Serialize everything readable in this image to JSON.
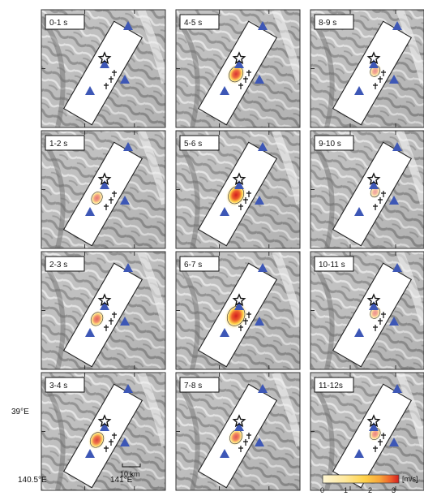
{
  "panels": [
    {
      "label": "0-1 s"
    },
    {
      "label": "4-5 s"
    },
    {
      "label": "8-9  s"
    },
    {
      "label": "1-2 s"
    },
    {
      "label": "5-6 s"
    },
    {
      "label": "9-10 s"
    },
    {
      "label": "2-3  s"
    },
    {
      "label": "6-7 s"
    },
    {
      "label": "10-11 s"
    },
    {
      "label": "3-4 s"
    },
    {
      "label": "7-8 s"
    },
    {
      "label": "11-12s"
    }
  ],
  "slip_intensity": [
    [
      0.0,
      0.55,
      0.15
    ],
    [
      0.25,
      0.7,
      0.08
    ],
    [
      0.35,
      0.9,
      0.15
    ],
    [
      0.5,
      0.4,
      0.2
    ]
  ],
  "axes": {
    "y_tick_label": "39°E",
    "x_tick_labels": [
      "140.5°E",
      "141°E"
    ]
  },
  "scale_bar": {
    "label": "10 km"
  },
  "colorbar": {
    "unit": "[m/s]",
    "ticks": [
      "0",
      "1",
      "2",
      "3"
    ],
    "colors": [
      "#fff7d4",
      "#ffe89a",
      "#ffd24a",
      "#f7a53a",
      "#ec5c2a",
      "#d31d1f"
    ]
  },
  "symbols": {
    "station_color": "#3d57b6",
    "epicenter_symbol": "star",
    "fault_trace_symbol": "dagger"
  }
}
